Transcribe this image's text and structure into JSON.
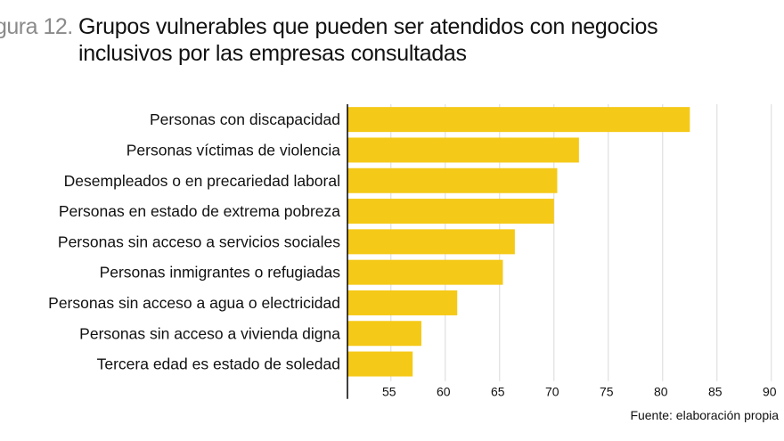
{
  "figure": {
    "label": "gura 12.",
    "title_line1": "Grupos vulnerables que pueden ser atendidos con negocios",
    "title_line2": "inclusivos por las empresas consultadas"
  },
  "source": "Fuente: elaboración propia",
  "colors": {
    "bar": "#f5c917",
    "grid": "#d9d9d9",
    "axis": "#000000",
    "text": "#111111"
  },
  "chart_data": {
    "type": "bar",
    "orientation": "horizontal",
    "title": "Grupos vulnerables que pueden ser atendidos con negocios inclusivos por las empresas consultadas",
    "categories": [
      "Personas con discapacidad",
      "Personas víctimas de violencia",
      "Desempleados o en precariedad laboral",
      "Personas en estado de extrema pobreza",
      "Personas sin acceso a servicios sociales",
      "Personas inmigrantes o refugiadas",
      "Personas sin acceso a agua o electricidad",
      "Personas sin acceso a vivienda digna",
      "Tercera edad es estado de soledad"
    ],
    "values": [
      82.5,
      72.3,
      70.3,
      70.0,
      66.4,
      65.3,
      61.1,
      57.8,
      57.0
    ],
    "xlim": [
      51,
      91
    ],
    "xticks": [
      55,
      60,
      65,
      70,
      75,
      80,
      85,
      90
    ],
    "grid": true,
    "legend": "none"
  }
}
